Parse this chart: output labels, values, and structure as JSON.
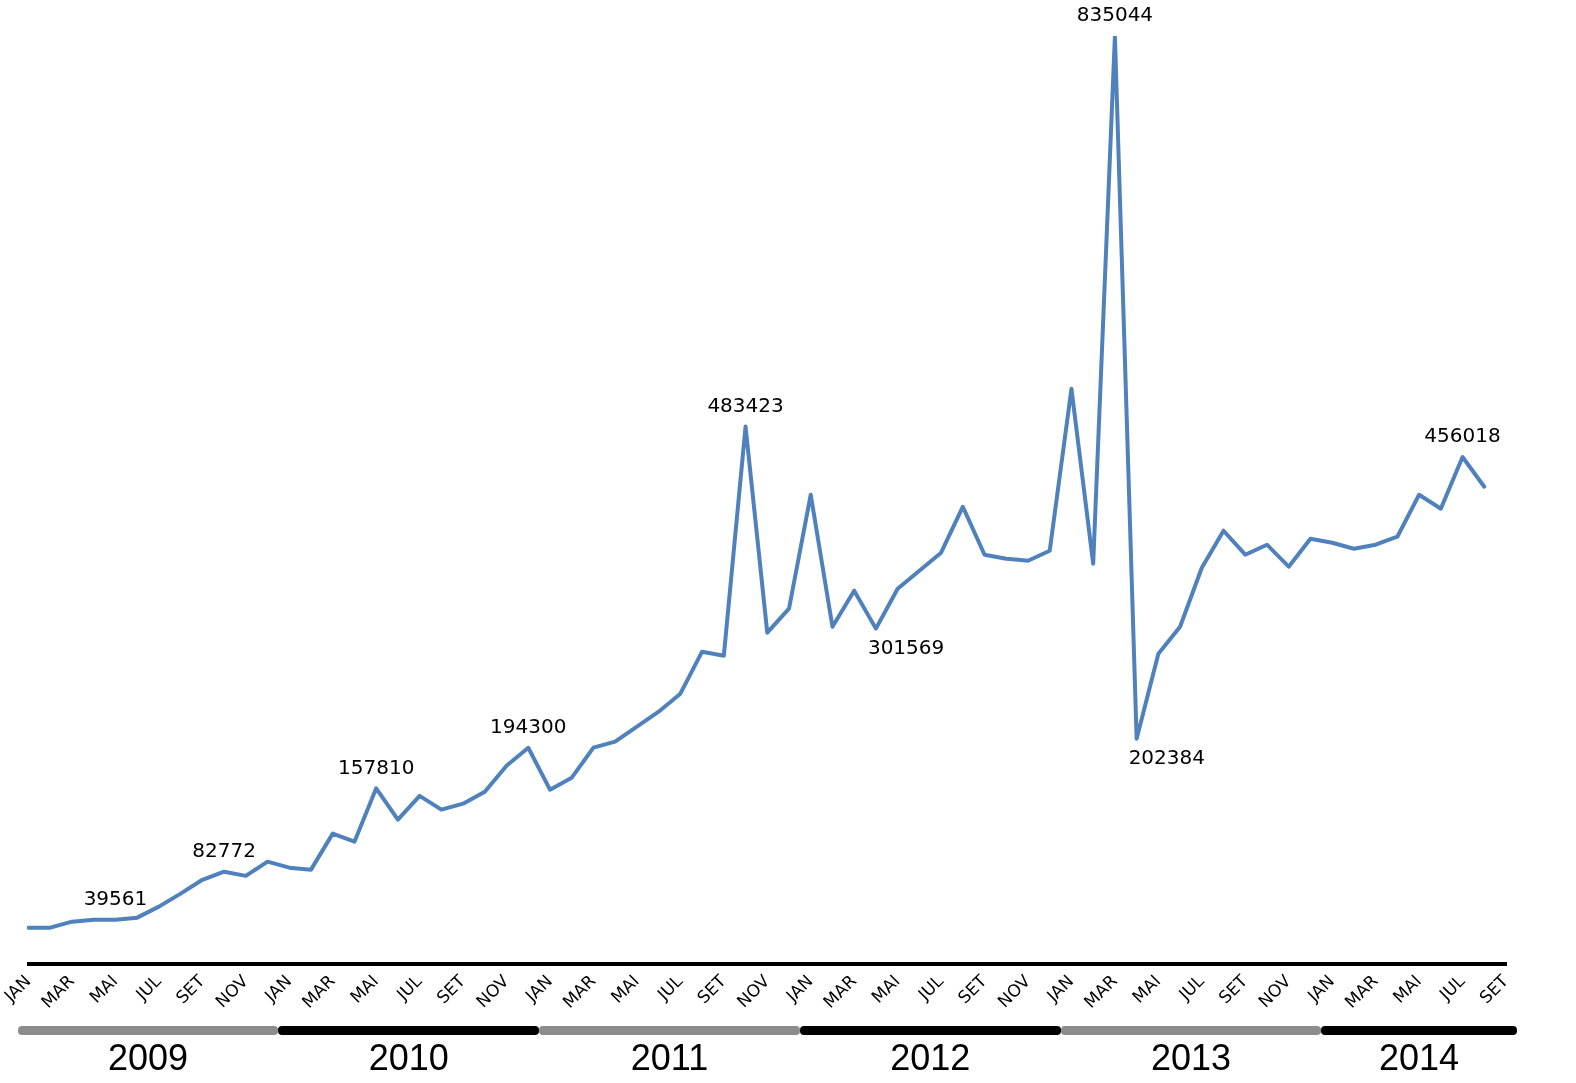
{
  "chart_data": {
    "type": "line",
    "categories": [
      "JAN",
      null,
      "MAR",
      null,
      "MAI",
      null,
      "JUL",
      null,
      "SET",
      null,
      "NOV",
      null,
      "JAN",
      null,
      "MAR",
      null,
      "MAI",
      null,
      "JUL",
      null,
      "SET",
      null,
      "NOV",
      null,
      "JAN",
      null,
      "MAR",
      null,
      "MAI",
      null,
      "JUL",
      null,
      "SET",
      null,
      "NOV",
      null,
      "JAN",
      null,
      "MAR",
      null,
      "MAI",
      null,
      "JUL",
      null,
      "SET",
      null,
      "NOV",
      null,
      "JAN",
      null,
      "MAR",
      null,
      "MAI",
      null,
      "JUL",
      null,
      "SET",
      null,
      "NOV",
      null,
      "JAN",
      null,
      "MAR",
      null,
      "MAI",
      null,
      "JUL",
      null,
      "SET"
    ],
    "series": [
      {
        "color": "#4f81bd",
        "values": [
          32400,
          32400,
          37800,
          39600,
          39561,
          41400,
          51300,
          63000,
          75500,
          82772,
          79000,
          91800,
          86400,
          84600,
          117000,
          109800,
          157810,
          129600,
          151000,
          138600,
          144000,
          154800,
          178200,
          194300,
          156600,
          167400,
          194400,
          199800,
          213300,
          226800,
          243000,
          280800,
          277200,
          483423,
          297900,
          319500,
          422100,
          303300,
          335700,
          301569,
          337500,
          353700,
          369900,
          411300,
          368100,
          364500,
          362700,
          371700,
          517500,
          360000,
          835044,
          202384,
          279000,
          303300,
          356400,
          389700,
          368100,
          377100,
          357300,
          382500,
          378900,
          373500,
          377100,
          384300,
          422100,
          409500,
          456018,
          429300,
          null
        ],
        "value_labels": [
          null,
          null,
          null,
          null,
          "39561",
          null,
          null,
          null,
          null,
          "82772",
          null,
          null,
          null,
          null,
          null,
          null,
          "157810",
          null,
          null,
          null,
          null,
          null,
          null,
          "194300",
          null,
          null,
          null,
          null,
          null,
          null,
          null,
          null,
          null,
          "483423",
          null,
          null,
          null,
          null,
          null,
          "301569",
          null,
          null,
          null,
          null,
          null,
          null,
          null,
          null,
          null,
          null,
          "835044",
          "202384",
          null,
          null,
          null,
          null,
          null,
          null,
          null,
          null,
          null,
          null,
          null,
          null,
          null,
          null,
          "456018",
          null,
          null
        ]
      }
    ],
    "annotations": [
      "2009",
      "2010",
      "2011",
      "2012",
      "2013",
      "2014"
    ],
    "marker": "none",
    "line_style": "solid",
    "legend": false
  }
}
